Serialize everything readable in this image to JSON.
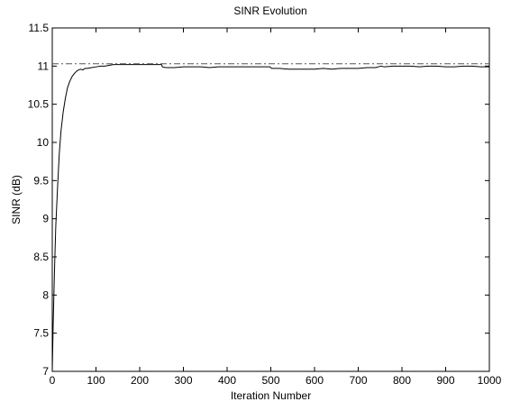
{
  "chart_data": {
    "type": "line",
    "title": "SINR Evolution",
    "xlabel": "Iteration Number",
    "ylabel": "SINR (dB)",
    "xlim": [
      0,
      1000
    ],
    "ylim": [
      7,
      11.5
    ],
    "xticks": [
      0,
      100,
      200,
      300,
      400,
      500,
      600,
      700,
      800,
      900,
      1000
    ],
    "yticks": [
      7,
      7.5,
      8,
      8.5,
      9,
      9.5,
      10,
      10.5,
      11,
      11.5
    ],
    "grid": false,
    "series": [
      {
        "style": "solid",
        "color": "#000000",
        "x": [
          0,
          2,
          5,
          8,
          12,
          16,
          20,
          25,
          30,
          35,
          40,
          45,
          50,
          55,
          60,
          65,
          70,
          75,
          80,
          90,
          100,
          110,
          120,
          130,
          140,
          150,
          160,
          170,
          180,
          190,
          200,
          210,
          220,
          230,
          240,
          250,
          252,
          260,
          280,
          300,
          320,
          340,
          360,
          380,
          400,
          420,
          440,
          460,
          480,
          498,
          502,
          520,
          540,
          560,
          580,
          600,
          620,
          640,
          660,
          680,
          700,
          720,
          740,
          752,
          760,
          780,
          800,
          820,
          840,
          860,
          880,
          900,
          920,
          940,
          960,
          980,
          1000
        ],
        "y": [
          7.0,
          7.6,
          8.3,
          8.9,
          9.4,
          9.85,
          10.15,
          10.4,
          10.58,
          10.72,
          10.8,
          10.86,
          10.9,
          10.93,
          10.95,
          10.96,
          10.95,
          10.97,
          10.97,
          10.98,
          10.99,
          11.0,
          11.0,
          11.01,
          11.02,
          11.02,
          11.02,
          11.02,
          11.02,
          11.02,
          11.02,
          11.02,
          11.02,
          11.02,
          11.02,
          11.02,
          10.99,
          10.98,
          10.98,
          10.99,
          10.99,
          10.99,
          10.98,
          10.99,
          10.99,
          10.99,
          10.99,
          10.99,
          10.99,
          10.99,
          10.97,
          10.97,
          10.96,
          10.96,
          10.96,
          10.96,
          10.97,
          10.96,
          10.97,
          10.97,
          10.97,
          10.98,
          10.98,
          11.0,
          10.99,
          11.0,
          11.0,
          11.0,
          10.99,
          11.0,
          11.0,
          10.99,
          10.99,
          11.0,
          11.0,
          10.99,
          10.99
        ]
      },
      {
        "style": "dash-dot",
        "color": "#555555",
        "x": [
          0,
          1000
        ],
        "y": [
          11.03,
          11.03
        ]
      }
    ]
  }
}
